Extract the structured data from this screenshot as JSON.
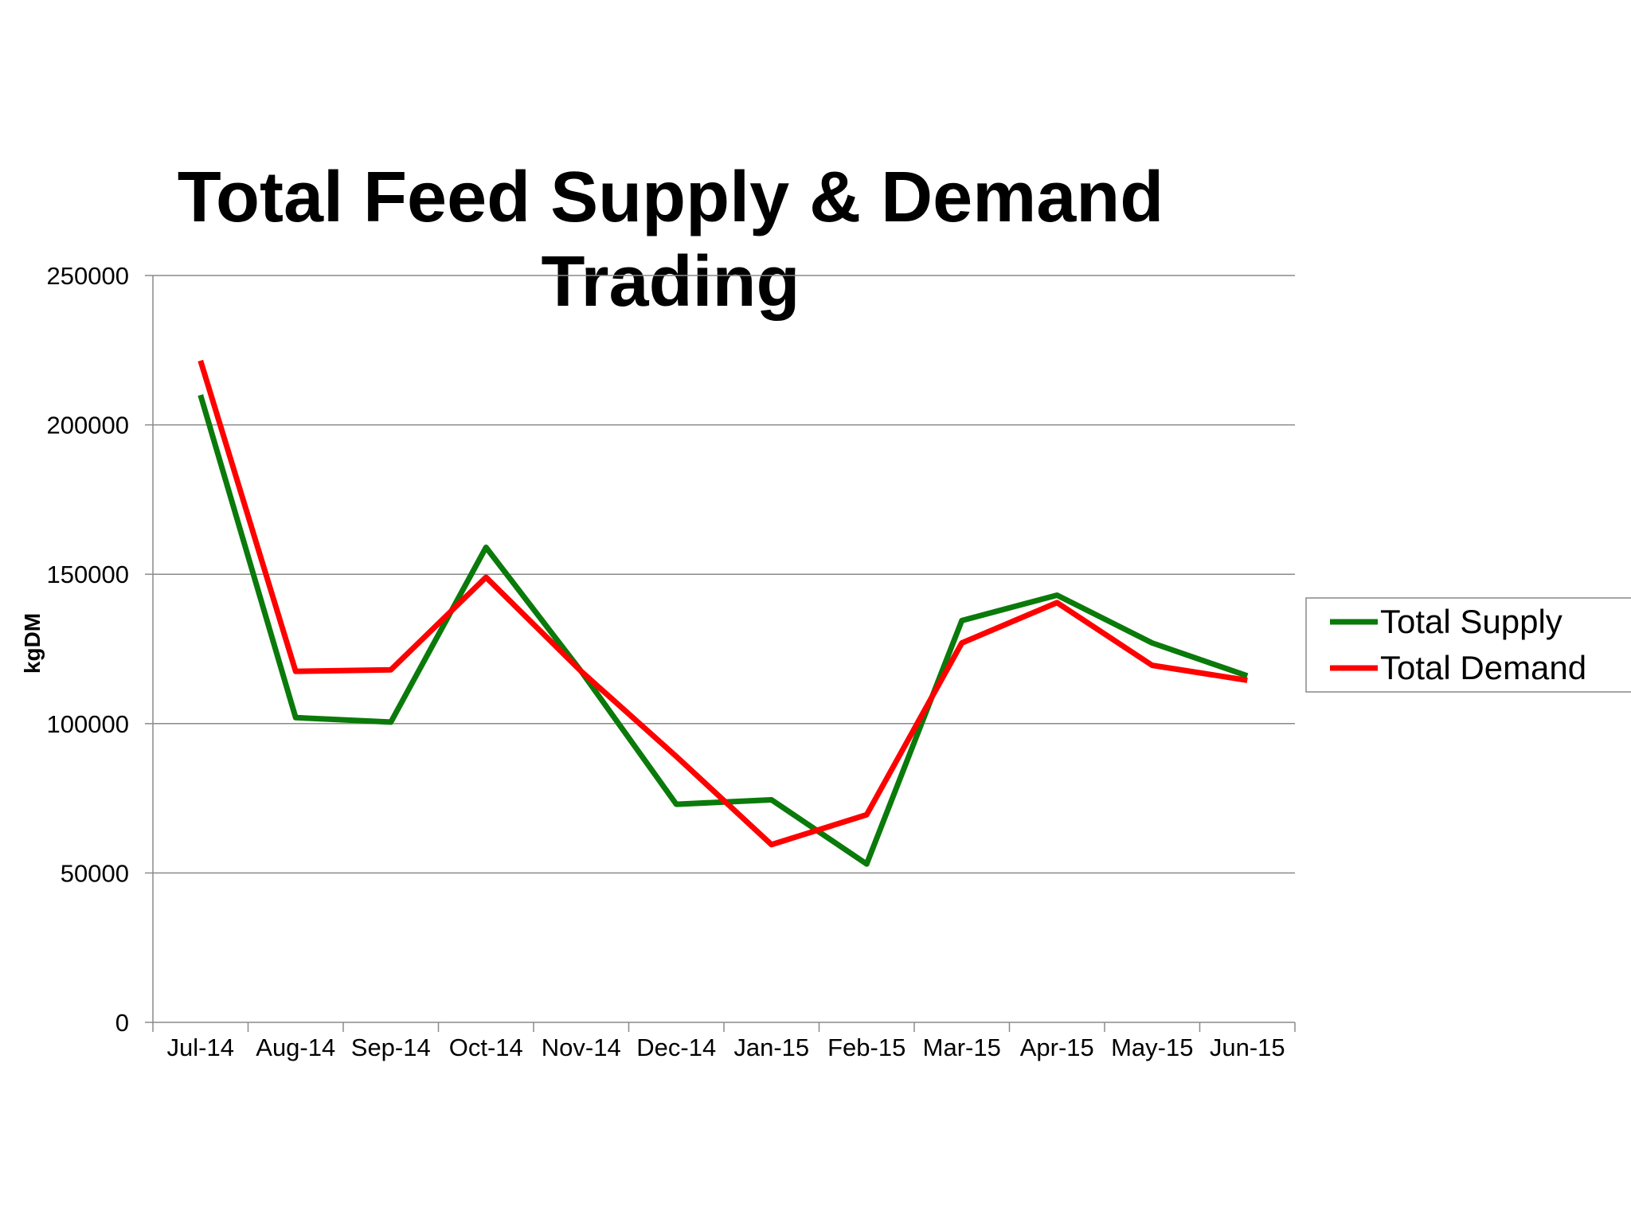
{
  "chart_data": {
    "type": "line",
    "title_lines": [
      "Total Feed Supply & Demand",
      "Trading"
    ],
    "xlabel": "",
    "ylabel": "kgDM",
    "ylim": [
      0,
      250000
    ],
    "yticks": [
      "0",
      "50000",
      "100000",
      "150000",
      "200000",
      "250000"
    ],
    "grid": true,
    "legend_position": "right",
    "categories": [
      "Jul-14",
      "Aug-14",
      "Sep-14",
      "Oct-14",
      "Nov-14",
      "Dec-14",
      "Jan-15",
      "Feb-15",
      "Mar-15",
      "Apr-15",
      "May-15",
      "Jun-15"
    ],
    "series": [
      {
        "name": "Total Supply",
        "color": "#0a7a0a",
        "values": [
          210000,
          102000,
          100500,
          159000,
          117500,
          73000,
          74500,
          53000,
          134500,
          143000,
          127000,
          116000
        ]
      },
      {
        "name": "Total Demand",
        "color": "#ff0000",
        "values": [
          221500,
          117500,
          118000,
          149000,
          117500,
          89000,
          59500,
          69500,
          127000,
          140500,
          119500,
          114500
        ]
      }
    ]
  }
}
